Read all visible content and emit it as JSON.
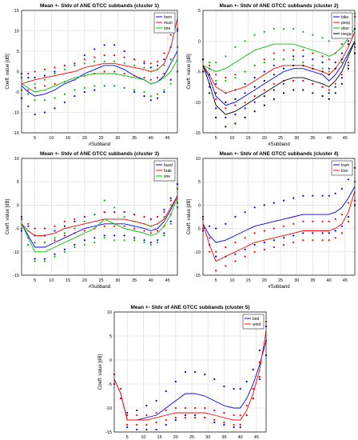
{
  "colors": {
    "blue": "#0000ff",
    "red": "#ff0000",
    "green": "#00c000",
    "black": "#000000",
    "grid": "#d9d9d9"
  },
  "chart_data": [
    {
      "type": "line",
      "title": "Mean +- Stdv of ANE GTCC subbands (cluster 1)",
      "xlabel": "#Subband",
      "ylabel": "Coeff. value [dB]",
      "xlim": [
        1,
        48
      ],
      "ylim": [
        -15,
        15
      ],
      "xticks": [
        5,
        10,
        15,
        20,
        25,
        30,
        35,
        40,
        45
      ],
      "yticks": [
        -15,
        -10,
        -5,
        0,
        5,
        10,
        15
      ],
      "grid": true,
      "legend_position": "top-right",
      "x": [
        1,
        3,
        5,
        8,
        11,
        14,
        17,
        20,
        23,
        26,
        29,
        32,
        35,
        38,
        40,
        42,
        44,
        46,
        48
      ],
      "series": [
        {
          "name": "horn",
          "color": "blue",
          "mean": [
            -3.5,
            -5,
            -6,
            -5.5,
            -4.5,
            -3,
            -2,
            -0.5,
            0.5,
            1.5,
            1.5,
            0.5,
            -1,
            -2,
            -3,
            -2.5,
            -1,
            2,
            5
          ],
          "std": [
            3,
            3.5,
            4.5,
            4.5,
            4.5,
            4.5,
            4,
            4.5,
            5,
            5,
            5,
            4.5,
            4,
            4,
            4,
            4,
            4,
            4,
            5
          ]
        },
        {
          "name": "musi",
          "color": "red",
          "mean": [
            -3,
            -2.5,
            -2,
            -1.5,
            -1,
            -0.5,
            0,
            1,
            1.5,
            2,
            2,
            1.5,
            1,
            0.5,
            0,
            0.5,
            2,
            6,
            13
          ],
          "std": [
            1.5,
            2,
            2,
            2,
            2,
            2,
            2,
            2,
            2,
            2,
            2,
            2,
            2,
            2,
            2,
            2,
            2.5,
            3,
            2.5
          ]
        },
        {
          "name": "stre",
          "color": "green",
          "mean": [
            -3,
            -4,
            -5,
            -4.5,
            -3.5,
            -2.5,
            -1.5,
            -1,
            -0.5,
            -0.5,
            -0.5,
            -1,
            -1.5,
            -2,
            -3,
            -2.5,
            -1.5,
            0,
            3
          ],
          "std": [
            1.5,
            1.5,
            2,
            2.5,
            3,
            3,
            3,
            3,
            3,
            3,
            3,
            3,
            3,
            3,
            3,
            3,
            3,
            3,
            3
          ]
        }
      ]
    },
    {
      "type": "line",
      "title": "Mean +- Stdv of ANE GTCC subbands (cluster 2)",
      "xlabel": "#Subband",
      "ylabel": "Coeff. value [dB]",
      "xlim": [
        1,
        48
      ],
      "ylim": [
        -15,
        5
      ],
      "xticks": [
        5,
        10,
        15,
        20,
        25,
        30,
        35,
        40,
        45
      ],
      "yticks": [
        -15,
        -10,
        -5,
        0,
        5
      ],
      "grid": true,
      "legend_position": "top-right",
      "x": [
        1,
        3,
        5,
        8,
        11,
        14,
        17,
        20,
        23,
        26,
        29,
        32,
        35,
        38,
        40,
        42,
        44,
        46,
        48
      ],
      "series": [
        {
          "name": "bike",
          "color": "blue",
          "mean": [
            -4,
            -6,
            -9,
            -10.5,
            -10,
            -9,
            -8,
            -7,
            -6,
            -5,
            -4.5,
            -4.5,
            -5,
            -5.5,
            -6.5,
            -5.5,
            -4,
            -2,
            0
          ],
          "std": [
            1,
            1.5,
            2,
            2,
            2,
            2,
            2,
            2,
            2,
            2,
            2,
            2,
            2,
            2,
            2,
            2,
            2,
            2,
            2
          ]
        },
        {
          "name": "peop",
          "color": "red",
          "mean": [
            -4,
            -5.5,
            -7.5,
            -8.5,
            -8,
            -7.5,
            -6.5,
            -5.5,
            -4.5,
            -4,
            -4,
            -4,
            -4.5,
            -5,
            -5.5,
            -4.5,
            -3,
            -1,
            1.5
          ],
          "std": [
            1,
            1.5,
            2,
            2.5,
            2.5,
            2.5,
            2.5,
            2.5,
            2.5,
            2.5,
            2.5,
            2.5,
            2.5,
            2.5,
            2.5,
            2.5,
            2.5,
            2.5,
            2.5
          ]
        },
        {
          "name": "door",
          "color": "green",
          "mean": [
            -4,
            -4.5,
            -5,
            -4.5,
            -3.5,
            -2.5,
            -1.5,
            -1,
            -0.5,
            -0.5,
            -0.5,
            -1,
            -1.5,
            -2,
            -2.5,
            -2,
            -1,
            0.5,
            2
          ],
          "std": [
            1,
            1,
            1.5,
            2,
            2.5,
            2.5,
            2.5,
            2.5,
            2.5,
            2.5,
            2.5,
            2.5,
            2.5,
            2.5,
            2.5,
            2.5,
            2.5,
            2.5,
            2.5
          ]
        },
        {
          "name": "mega",
          "color": "black",
          "mean": [
            -4,
            -7,
            -10.5,
            -12,
            -11.5,
            -10.5,
            -9.5,
            -8.5,
            -7.5,
            -6.5,
            -6,
            -6,
            -6.5,
            -7,
            -7.5,
            -6.5,
            -5,
            -2.5,
            0
          ],
          "std": [
            1,
            1.5,
            2,
            2,
            2,
            2,
            2,
            2,
            2,
            2,
            2,
            2,
            2,
            2,
            2,
            2,
            2,
            2,
            2
          ]
        }
      ]
    },
    {
      "type": "line",
      "title": "Mean +- Stdv of ANE GTCC subbands (cluster 3)",
      "xlabel": "#Subband",
      "ylabel": "Coeff. value [dB]",
      "xlim": [
        1,
        48
      ],
      "ylim": [
        -15,
        10
      ],
      "xticks": [
        5,
        10,
        15,
        20,
        25,
        30,
        35,
        40,
        45
      ],
      "yticks": [
        -15,
        -10,
        -5,
        0,
        5,
        10
      ],
      "grid": true,
      "legend_position": "top-right",
      "x": [
        1,
        3,
        5,
        8,
        11,
        14,
        17,
        20,
        23,
        26,
        29,
        32,
        35,
        38,
        40,
        42,
        44,
        46,
        48
      ],
      "series": [
        {
          "name": "busd",
          "color": "blue",
          "mean": [
            -4,
            -6.5,
            -9,
            -9,
            -8,
            -7,
            -6,
            -5,
            -4.5,
            -4,
            -4,
            -4,
            -4.5,
            -5,
            -5.5,
            -5,
            -3.5,
            -1,
            2
          ],
          "std": [
            1.5,
            2,
            2.5,
            2.5,
            2.5,
            2.5,
            2.5,
            2.5,
            2.5,
            2.5,
            2.5,
            2.5,
            2.5,
            2.5,
            2.5,
            2.5,
            2.5,
            2.5,
            2.5
          ]
        },
        {
          "name": "brak",
          "color": "red",
          "mean": [
            -4,
            -5.5,
            -6.5,
            -6.5,
            -6,
            -5,
            -4.5,
            -4,
            -3.5,
            -3,
            -3,
            -3,
            -3.5,
            -4,
            -4.5,
            -4,
            -3,
            -0.5,
            2
          ],
          "std": [
            1,
            1.5,
            1.5,
            1.5,
            1.5,
            1.5,
            1.5,
            1.5,
            1.5,
            1.5,
            1.5,
            1.5,
            1.5,
            1.5,
            1.5,
            1.5,
            1.5,
            1.5,
            1.5
          ]
        },
        {
          "name": "sire",
          "color": "green",
          "mean": [
            -4,
            -7,
            -10,
            -10,
            -9,
            -8,
            -7,
            -6,
            -5,
            -3,
            -4,
            -5,
            -5.5,
            -6,
            -6.5,
            -6,
            -4.5,
            -2,
            1.5
          ],
          "std": [
            1,
            1.5,
            2,
            2,
            2,
            2,
            2,
            2.5,
            3,
            4,
            3.5,
            2.5,
            2,
            2,
            2,
            2,
            2,
            2,
            2
          ]
        }
      ]
    },
    {
      "type": "line",
      "title": "Mean +- Stdv of ANE GTCC subbands (cluster 4)",
      "xlabel": "#Subband",
      "ylabel": "Coeff. value [dB]",
      "xlim": [
        1,
        48
      ],
      "ylim": [
        -15,
        10
      ],
      "xticks": [
        5,
        10,
        15,
        20,
        25,
        30,
        35,
        40,
        45
      ],
      "yticks": [
        -15,
        -10,
        -5,
        0,
        5,
        10
      ],
      "grid": true,
      "legend_position": "top-right",
      "x": [
        1,
        3,
        5,
        8,
        11,
        14,
        17,
        20,
        23,
        26,
        29,
        32,
        35,
        38,
        40,
        42,
        44,
        46,
        48
      ],
      "series": [
        {
          "name": "tram",
          "color": "blue",
          "mean": [
            -4,
            -6.5,
            -8,
            -7.5,
            -6.5,
            -5.5,
            -4.5,
            -4,
            -3.5,
            -3,
            -2.5,
            -2,
            -2,
            -2,
            -2,
            -1.5,
            -0.5,
            1.5,
            4
          ],
          "std": [
            1.5,
            2,
            3,
            3.5,
            4,
            4,
            4,
            4,
            4,
            4,
            4,
            4,
            4,
            4,
            4,
            4,
            4,
            4,
            4
          ]
        },
        {
          "name": "tran",
          "color": "red",
          "mean": [
            -4,
            -8.5,
            -12,
            -11,
            -10,
            -9,
            -8,
            -7.5,
            -7,
            -6.5,
            -6,
            -5.5,
            -5.5,
            -5.5,
            -5.5,
            -5,
            -4,
            -1.5,
            3
          ],
          "std": [
            1,
            1.5,
            2,
            2,
            2,
            2,
            2,
            2,
            2,
            2,
            2,
            2,
            2,
            2,
            2,
            2,
            2,
            2,
            2
          ]
        }
      ]
    },
    {
      "type": "line",
      "title": "Mean +- Stdv of ANE GTCC subbands (cluster 5)",
      "xlabel": "#Subband",
      "ylabel": "Coeff. value [dB]",
      "xlim": [
        1,
        48
      ],
      "ylim": [
        -15,
        10
      ],
      "xticks": [
        5,
        10,
        15,
        20,
        25,
        30,
        35,
        40,
        45
      ],
      "yticks": [
        -15,
        -10,
        -5,
        0,
        5,
        10
      ],
      "grid": true,
      "legend_position": "top-right",
      "x": [
        1,
        3,
        5,
        8,
        11,
        14,
        17,
        20,
        23,
        26,
        29,
        32,
        35,
        38,
        40,
        42,
        44,
        46,
        48
      ],
      "series": [
        {
          "name": "bird",
          "color": "blue",
          "mean": [
            -4,
            -7,
            -12.5,
            -12.5,
            -12,
            -11.5,
            -10,
            -8.5,
            -7,
            -7,
            -7.5,
            -8.5,
            -9.5,
            -10,
            -10,
            -8,
            -5,
            -1,
            4
          ],
          "std": [
            1,
            1,
            1.5,
            2,
            2.5,
            3,
            3.5,
            4,
            4.5,
            4.5,
            4.5,
            4.5,
            4,
            4,
            4,
            3.5,
            3,
            3,
            3
          ]
        },
        {
          "name": "wind",
          "color": "red",
          "mean": [
            -4,
            -7,
            -12.5,
            -12.5,
            -12.5,
            -12,
            -11.5,
            -11,
            -11,
            -11,
            -11,
            -11.5,
            -12,
            -12.5,
            -12.5,
            -10.5,
            -7,
            -2,
            6
          ],
          "std": [
            1,
            1,
            1,
            1,
            1,
            1,
            1,
            1,
            1,
            1,
            1,
            1,
            1,
            1,
            1,
            1,
            1,
            1.5,
            2
          ]
        }
      ]
    }
  ]
}
